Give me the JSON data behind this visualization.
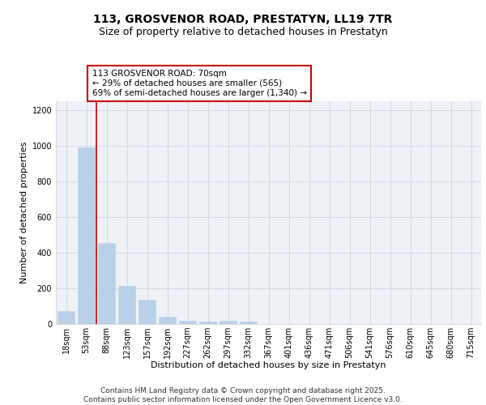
{
  "title": "113, GROSVENOR ROAD, PRESTATYN, LL19 7TR",
  "subtitle": "Size of property relative to detached houses in Prestatyn",
  "xlabel": "Distribution of detached houses by size in Prestatyn",
  "ylabel": "Number of detached properties",
  "categories": [
    "18sqm",
    "53sqm",
    "88sqm",
    "123sqm",
    "157sqm",
    "192sqm",
    "227sqm",
    "262sqm",
    "297sqm",
    "332sqm",
    "367sqm",
    "401sqm",
    "436sqm",
    "471sqm",
    "506sqm",
    "541sqm",
    "576sqm",
    "610sqm",
    "645sqm",
    "680sqm",
    "715sqm"
  ],
  "values": [
    75,
    990,
    455,
    215,
    135,
    40,
    20,
    14,
    20,
    15,
    0,
    0,
    0,
    0,
    0,
    0,
    0,
    0,
    0,
    0,
    0
  ],
  "bar_color": "#b8d0e8",
  "bar_edge_color": "#b8d0e8",
  "grid_color": "#d0d8e0",
  "background_color": "#eef2f7",
  "ylim": [
    0,
    1250
  ],
  "yticks": [
    0,
    200,
    400,
    600,
    800,
    1000,
    1200
  ],
  "vline_color": "#cc0000",
  "annotation_text": "113 GROSVENOR ROAD: 70sqm\n← 29% of detached houses are smaller (565)\n69% of semi-detached houses are larger (1,340) →",
  "annotation_box_color": "#cc0000",
  "footer_text": "Contains HM Land Registry data © Crown copyright and database right 2025.\nContains public sector information licensed under the Open Government Licence v3.0.",
  "title_fontsize": 10,
  "subtitle_fontsize": 9,
  "xlabel_fontsize": 8,
  "ylabel_fontsize": 8,
  "tick_fontsize": 7,
  "annotation_fontsize": 7.5,
  "footer_fontsize": 6.5
}
